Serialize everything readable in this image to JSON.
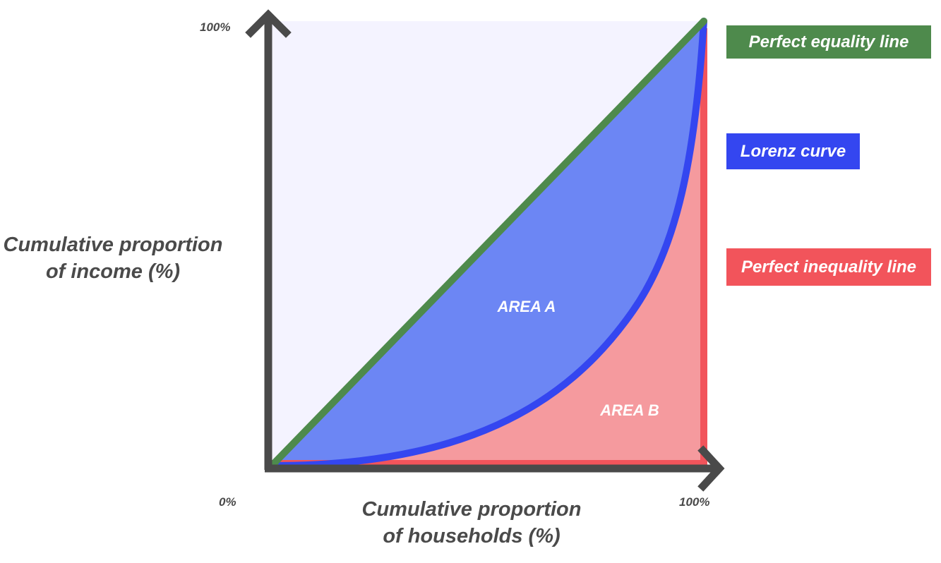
{
  "colors": {
    "background_plot": "#f4f3ff",
    "axis": "#4a4a4a",
    "equality": "#4e8a4c",
    "lorenz": "#3446f0",
    "lorenz_fill": "#6c86f4",
    "inequality": "#f2545b",
    "inequality_fill": "#f59a9e"
  },
  "axes": {
    "y_top_label": "100%",
    "origin_label": "0%",
    "x_right_label": "100%",
    "y_title_line1": "Cumulative proportion",
    "y_title_line2": "of income (%)",
    "x_title_line1": "Cumulative proportion",
    "x_title_line2": "of households (%)"
  },
  "areas": {
    "area_a": "AREA A",
    "area_b": "AREA B"
  },
  "legend": {
    "equality": "Perfect equality line",
    "lorenz": "Lorenz curve",
    "inequality": "Perfect inequality line"
  }
}
